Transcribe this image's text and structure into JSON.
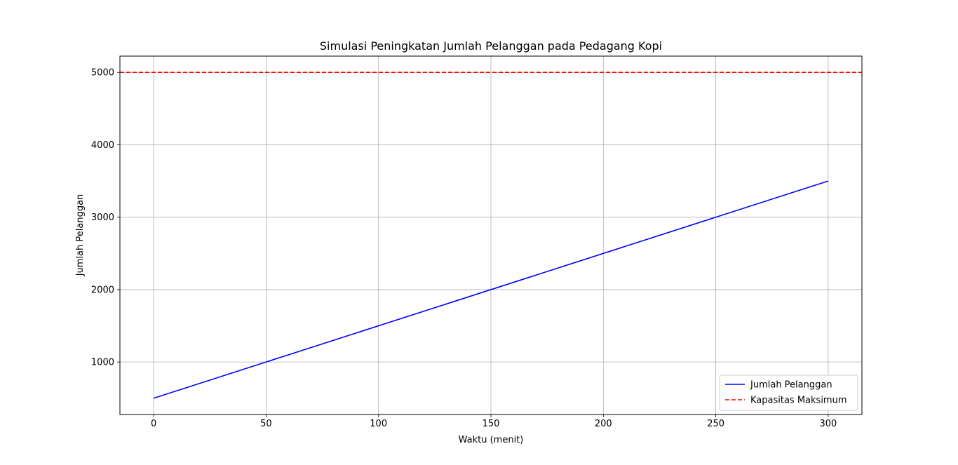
{
  "chart_data": {
    "type": "line",
    "title": "Simulasi Peningkatan Jumlah Pelanggan pada Pedagang Kopi",
    "xlabel": "Waktu (menit)",
    "ylabel": "Jumlah Pelanggan",
    "xlim": [
      -15,
      315
    ],
    "ylim": [
      275,
      5225
    ],
    "xticks": [
      0,
      50,
      100,
      150,
      200,
      250,
      300
    ],
    "yticks": [
      1000,
      2000,
      3000,
      4000,
      5000
    ],
    "grid": true,
    "legend_position": "lower-right",
    "series": [
      {
        "name": "Jumlah Pelanggan",
        "color": "#0000ff",
        "style": "solid",
        "x": [
          0,
          300
        ],
        "y": [
          500,
          3500
        ]
      },
      {
        "name": "Kapasitas Maksimum",
        "color": "#ff0000",
        "style": "dashed",
        "kind": "hline",
        "y": 5000
      }
    ]
  }
}
